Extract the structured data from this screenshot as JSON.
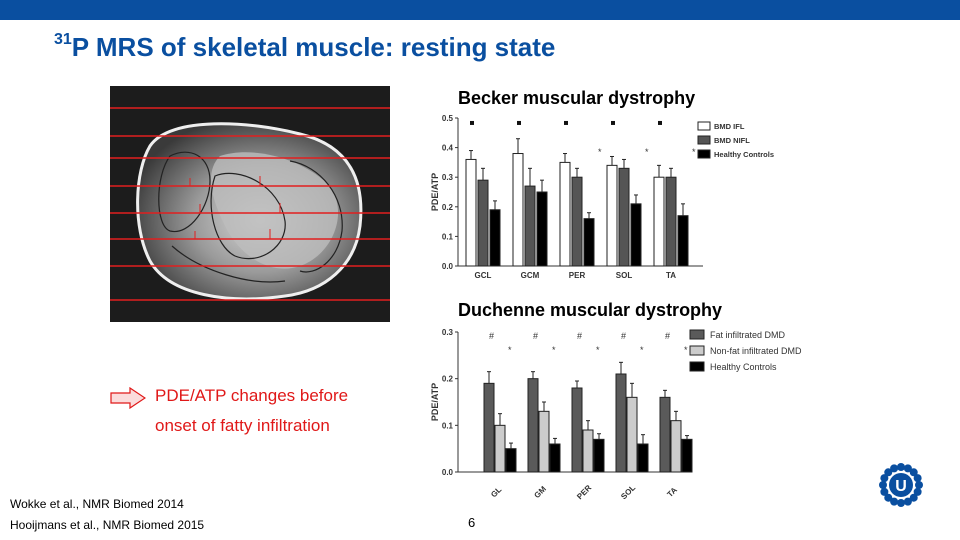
{
  "header": {
    "bar_color": "#0a4fa0",
    "title_sup": "31",
    "title_rest": "P MRS of skeletal muscle: resting state"
  },
  "mri_image": {
    "description_icon": "mri-leg-cross-section"
  },
  "becker": {
    "heading": "Becker muscular dystrophy",
    "chart_data": {
      "type": "bar",
      "ylabel": "PDE/ATP",
      "ylim": [
        0,
        0.5
      ],
      "yticks": [
        "0.0",
        "0.1",
        "0.2",
        "0.3",
        "0.4",
        "0.5"
      ],
      "categories": [
        "GCL",
        "GCM",
        "PER",
        "SOL",
        "TA"
      ],
      "series": [
        {
          "name": "BMD IFL",
          "values": [
            0.36,
            0.38,
            0.35,
            0.34,
            0.3
          ],
          "errors": [
            0.03,
            0.05,
            0.03,
            0.03,
            0.04
          ],
          "color": "#ffffff"
        },
        {
          "name": "BMD NIFL",
          "values": [
            0.29,
            0.27,
            0.3,
            0.33,
            0.3
          ],
          "errors": [
            0.04,
            0.06,
            0.03,
            0.03,
            0.03
          ],
          "color": "#555555"
        },
        {
          "name": "Healthy Controls",
          "values": [
            0.19,
            0.25,
            0.16,
            0.21,
            0.17
          ],
          "errors": [
            0.03,
            0.04,
            0.02,
            0.03,
            0.04
          ],
          "color": "#000000"
        }
      ],
      "markers": {
        "square": [
          0,
          1,
          2,
          3,
          4
        ],
        "star": [
          2,
          3,
          4
        ]
      },
      "star_label": "*"
    }
  },
  "duchenne": {
    "heading": "Duchenne muscular dystrophy",
    "chart_data": {
      "type": "bar",
      "ylabel": "PDE/ATP",
      "ylim": [
        0,
        0.3
      ],
      "yticks": [
        "0.0",
        "0.1",
        "0.2",
        "0.3"
      ],
      "categories": [
        "GL",
        "GM",
        "PER",
        "SOL",
        "TA"
      ],
      "series": [
        {
          "name": "Fat infiltrated DMD",
          "values": [
            0.19,
            0.2,
            0.18,
            0.21,
            0.16
          ],
          "errors": [
            0.025,
            0.015,
            0.015,
            0.025,
            0.015
          ],
          "color": "#5a5a5a"
        },
        {
          "name": "Non-fat infiltrated DMD",
          "values": [
            0.1,
            0.13,
            0.09,
            0.16,
            0.11
          ],
          "errors": [
            0.025,
            0.02,
            0.02,
            0.03,
            0.02
          ],
          "color": "#cccccc"
        },
        {
          "name": "Healthy Controls",
          "values": [
            0.05,
            0.06,
            0.07,
            0.06,
            0.07
          ],
          "errors": [
            0.012,
            0.012,
            0.012,
            0.02,
            0.008
          ],
          "color": "#000000"
        }
      ],
      "hash_label": "#",
      "star_label": "*"
    }
  },
  "callout": {
    "line1": "PDE/ATP changes before",
    "line2": "onset of fatty infiltration",
    "color": "#e01818"
  },
  "references": [
    "Wokke et al., NMR Biomed 2014",
    "Hooijmans et al., NMR Biomed 2015"
  ],
  "page_number": "6",
  "logo_icon": "umc-utrecht-sun-logo-icon"
}
